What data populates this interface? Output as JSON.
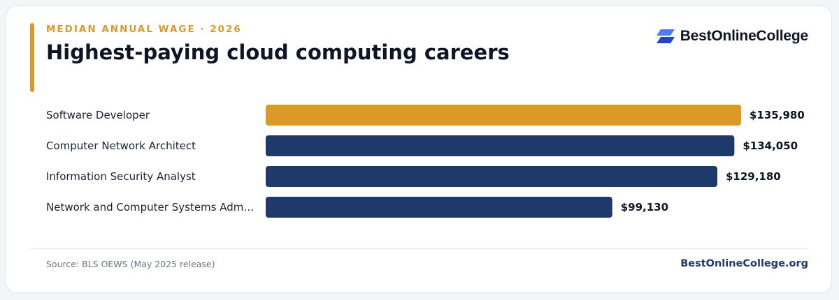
{
  "header": {
    "eyebrow": "MEDIAN ANNUAL WAGE · 2026",
    "title": "Highest-paying cloud computing careers"
  },
  "brand": {
    "name": "BestOnlineCollege",
    "logo_icon": "stacked-parallelogram-logo-icon"
  },
  "footer": {
    "source": "Source: BLS OEWS (May 2025 release)",
    "site": "BestOnlineCollege.org"
  },
  "colors": {
    "accent": "#db9a28",
    "bar_primary": "#1e3a6a",
    "bar_highlight": "#db9a28",
    "logo_light": "#4f7cf3",
    "logo_dark": "#2346c9"
  },
  "chart_data": {
    "type": "bar",
    "orientation": "horizontal",
    "categories": [
      "Software Developer",
      "Computer Network Architect",
      "Information Security Analyst",
      "Network and Computer Systems Adm…"
    ],
    "values": [
      135980,
      134050,
      129180,
      99130
    ],
    "value_labels": [
      "$135,980",
      "$134,050",
      "$129,180",
      "$99,130"
    ],
    "highlight_index": 0,
    "xlim": [
      0,
      135980
    ],
    "grid": false,
    "legend": "none"
  }
}
